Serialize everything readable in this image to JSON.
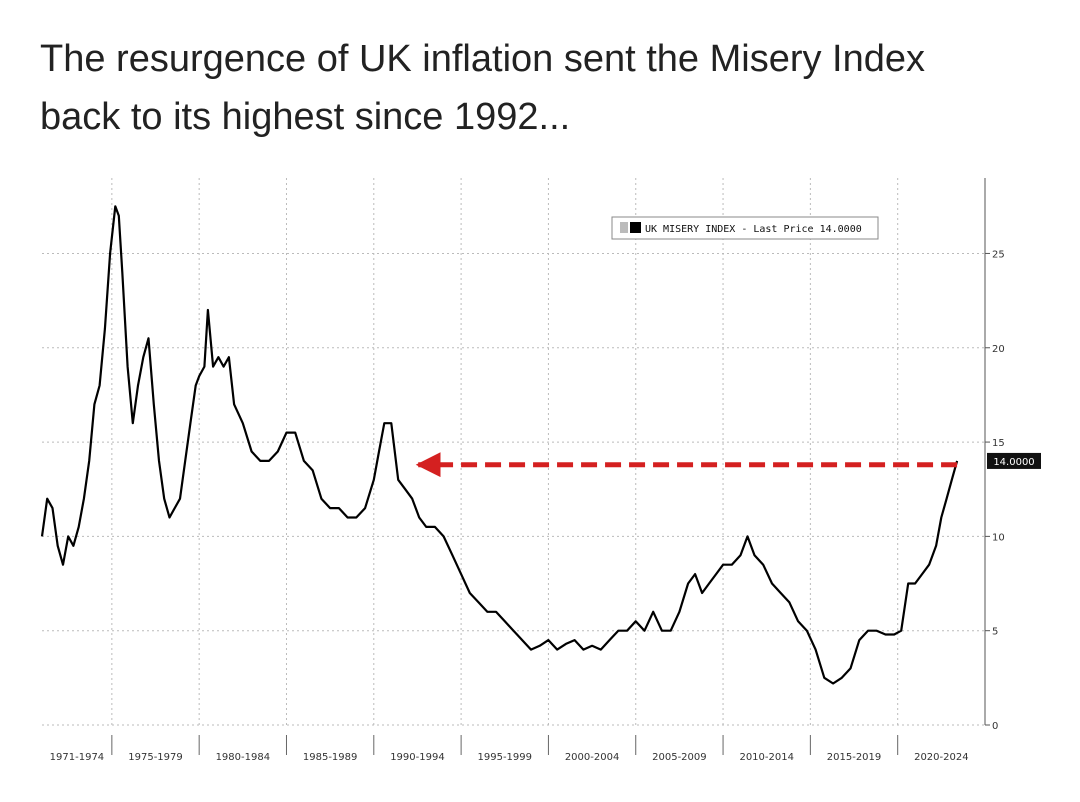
{
  "headline": {
    "line1": "The resurgence of UK inflation sent the Misery Index",
    "line2": "back to its highest since 1992..."
  },
  "chart_data": {
    "type": "line",
    "title": "",
    "xlabel": "",
    "ylabel": "",
    "xlim": [
      1971.0,
      2025.0
    ],
    "ylim": [
      0,
      29
    ],
    "y_ticks": [
      0,
      5,
      10,
      15,
      20,
      25
    ],
    "y_tick_labels": [
      "0",
      "5",
      "10",
      "15",
      "20",
      "25"
    ],
    "y_axis_side": "right",
    "grid": true,
    "legend_position": "top-right",
    "categories": [
      "1971-1974",
      "1975-1979",
      "1980-1984",
      "1985-1989",
      "1990-1994",
      "1995-1999",
      "2000-2004",
      "2005-2009",
      "2010-2014",
      "2015-2019",
      "2020-2024"
    ],
    "category_starts": [
      1971,
      1975,
      1980,
      1985,
      1990,
      1995,
      2000,
      2005,
      2010,
      2015,
      2020
    ],
    "series": [
      {
        "name": "UK MISERY INDEX - Last Price 14.0000",
        "color": "#000000",
        "x": [
          1971.0,
          1971.3,
          1971.6,
          1971.9,
          1972.2,
          1972.5,
          1972.8,
          1973.1,
          1973.4,
          1973.7,
          1974.0,
          1974.3,
          1974.6,
          1974.9,
          1975.2,
          1975.4,
          1975.6,
          1975.9,
          1976.2,
          1976.5,
          1976.8,
          1977.1,
          1977.4,
          1977.7,
          1978.0,
          1978.3,
          1978.6,
          1978.9,
          1979.2,
          1979.5,
          1979.8,
          1980.0,
          1980.3,
          1980.5,
          1980.8,
          1981.1,
          1981.4,
          1981.7,
          1982.0,
          1982.5,
          1983.0,
          1983.5,
          1984.0,
          1984.5,
          1985.0,
          1985.5,
          1986.0,
          1986.5,
          1987.0,
          1987.5,
          1988.0,
          1988.5,
          1989.0,
          1989.5,
          1990.0,
          1990.3,
          1990.6,
          1991.0,
          1991.4,
          1991.8,
          1992.2,
          1992.6,
          1993.0,
          1993.5,
          1994.0,
          1994.5,
          1995.0,
          1995.5,
          1996.0,
          1996.5,
          1997.0,
          1997.5,
          1998.0,
          1998.5,
          1999.0,
          1999.5,
          2000.0,
          2000.5,
          2001.0,
          2001.5,
          2002.0,
          2002.5,
          2003.0,
          2003.5,
          2004.0,
          2004.5,
          2005.0,
          2005.5,
          2006.0,
          2006.5,
          2007.0,
          2007.5,
          2008.0,
          2008.4,
          2008.8,
          2009.2,
          2009.6,
          2010.0,
          2010.5,
          2011.0,
          2011.4,
          2011.8,
          2012.3,
          2012.8,
          2013.3,
          2013.8,
          2014.3,
          2014.8,
          2015.3,
          2015.8,
          2016.3,
          2016.8,
          2017.3,
          2017.8,
          2018.3,
          2018.8,
          2019.3,
          2019.8,
          2020.2,
          2020.6,
          2021.0,
          2021.4,
          2021.8,
          2022.2,
          2022.5,
          2022.8,
          2023.1,
          2023.4
        ],
        "values": [
          10.0,
          12.0,
          11.5,
          9.5,
          8.5,
          10.0,
          9.5,
          10.5,
          12.0,
          14.0,
          17.0,
          18.0,
          21.0,
          25.0,
          27.5,
          27.0,
          24.0,
          19.0,
          16.0,
          18.0,
          19.5,
          20.5,
          17.0,
          14.0,
          12.0,
          11.0,
          11.5,
          12.0,
          14.0,
          16.0,
          18.0,
          18.5,
          19.0,
          22.0,
          19.0,
          19.5,
          19.0,
          19.5,
          17.0,
          16.0,
          14.5,
          14.0,
          14.0,
          14.5,
          15.5,
          15.5,
          14.0,
          13.5,
          12.0,
          11.5,
          11.5,
          11.0,
          11.0,
          11.5,
          13.0,
          14.5,
          16.0,
          16.0,
          13.0,
          12.5,
          12.0,
          11.0,
          10.5,
          10.5,
          10.0,
          9.0,
          8.0,
          7.0,
          6.5,
          6.0,
          6.0,
          5.5,
          5.0,
          4.5,
          4.0,
          4.2,
          4.5,
          4.0,
          4.3,
          4.5,
          4.0,
          4.2,
          4.0,
          4.5,
          5.0,
          5.0,
          5.5,
          5.0,
          6.0,
          5.0,
          5.0,
          6.0,
          7.5,
          8.0,
          7.0,
          7.5,
          8.0,
          8.5,
          8.5,
          9.0,
          10.0,
          9.0,
          8.5,
          7.5,
          7.0,
          6.5,
          5.5,
          5.0,
          4.0,
          2.5,
          2.2,
          2.5,
          3.0,
          4.5,
          5.0,
          5.0,
          4.8,
          4.8,
          5.0,
          7.5,
          7.5,
          8.0,
          8.5,
          9.5,
          11.0,
          12.0,
          13.0,
          14.0
        ]
      }
    ],
    "last_price_label": "14.0000",
    "annotation_arrow": {
      "from": [
        2023.4,
        13.8
      ],
      "to": [
        1992.2,
        13.8
      ],
      "color": "#d42020",
      "style": "dashed"
    }
  }
}
